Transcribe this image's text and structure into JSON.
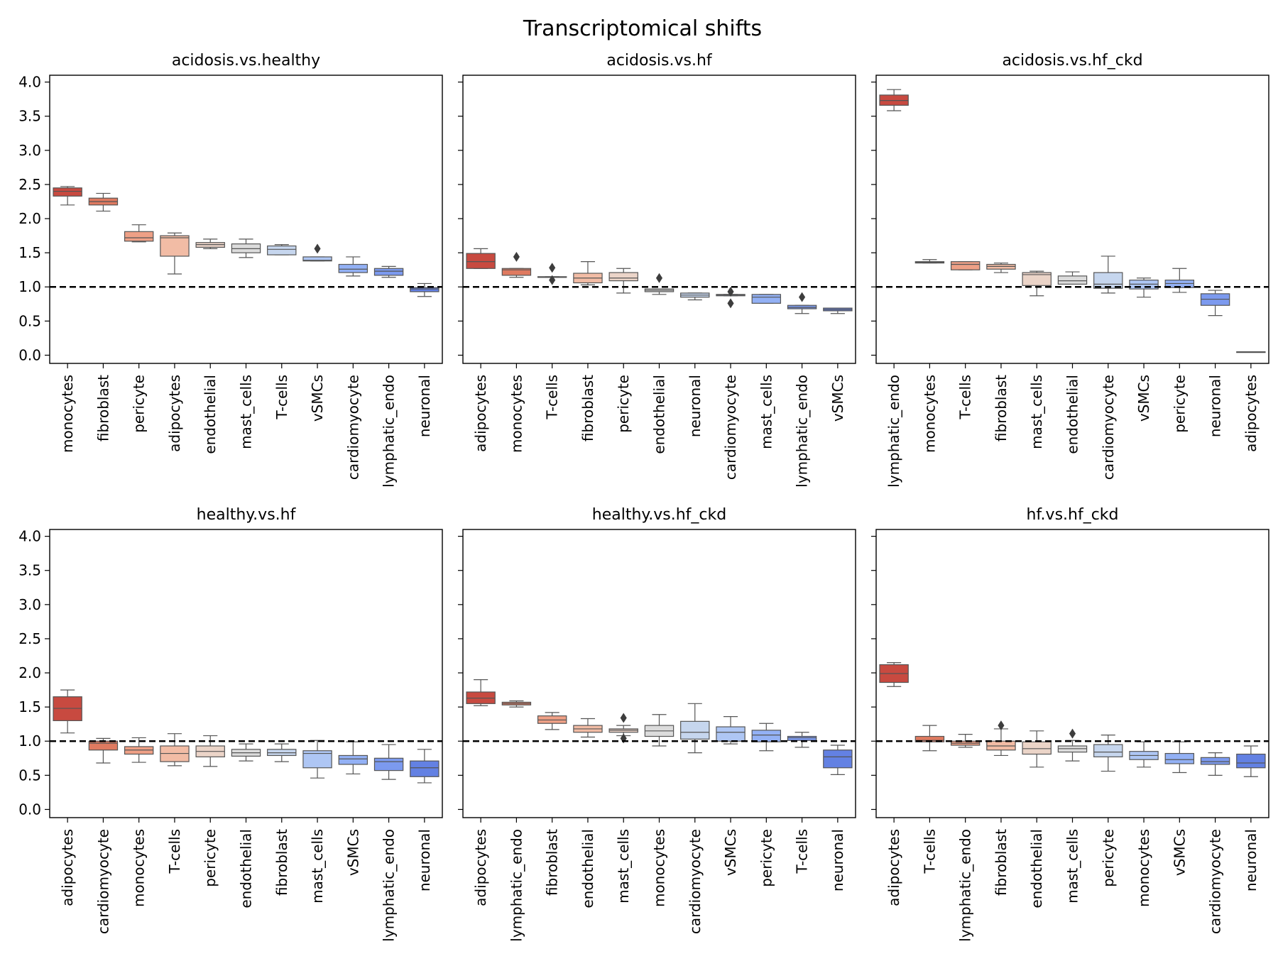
{
  "figure": {
    "title": "Transcriptomical shifts"
  },
  "chart_data": [
    {
      "type": "box",
      "title": "acidosis.vs.healthy",
      "ylim": [
        -0.12,
        4.1
      ],
      "yticks": [
        0.0,
        0.5,
        1.0,
        1.5,
        2.0,
        2.5,
        3.0,
        3.5,
        4.0
      ],
      "reference_line": 1.0,
      "boxes": [
        {
          "label": "monocytes",
          "color": "#c84a40",
          "q1": 2.33,
          "med": 2.4,
          "q3": 2.45,
          "wlo": 2.2,
          "whi": 2.47,
          "fliers": []
        },
        {
          "label": "fibroblast",
          "color": "#df7a60",
          "q1": 2.2,
          "med": 2.25,
          "q3": 2.3,
          "wlo": 2.11,
          "whi": 2.37,
          "fliers": []
        },
        {
          "label": "pericyte",
          "color": "#eea086",
          "q1": 1.67,
          "med": 1.72,
          "q3": 1.81,
          "wlo": 1.66,
          "whi": 1.91,
          "fliers": []
        },
        {
          "label": "adipocytes",
          "color": "#f2bca5",
          "q1": 1.45,
          "med": 1.72,
          "q3": 1.75,
          "wlo": 1.19,
          "whi": 1.79,
          "fliers": []
        },
        {
          "label": "endothelial",
          "color": "#ebd4c8",
          "q1": 1.58,
          "med": 1.62,
          "q3": 1.65,
          "wlo": 1.56,
          "whi": 1.7,
          "fliers": []
        },
        {
          "label": "mast_cells",
          "color": "#dcdcdc",
          "q1": 1.5,
          "med": 1.56,
          "q3": 1.63,
          "wlo": 1.43,
          "whi": 1.7,
          "fliers": []
        },
        {
          "label": "T-cells",
          "color": "#c6d6ee",
          "q1": 1.47,
          "med": 1.55,
          "q3": 1.6,
          "wlo": 1.47,
          "whi": 1.62,
          "fliers": []
        },
        {
          "label": "vSMCs",
          "color": "#aec6f4",
          "q1": 1.38,
          "med": 1.39,
          "q3": 1.44,
          "wlo": 1.38,
          "whi": 1.44,
          "fliers": [
            1.56
          ]
        },
        {
          "label": "cardiomyocyte",
          "color": "#93b1f5",
          "q1": 1.21,
          "med": 1.26,
          "q3": 1.33,
          "wlo": 1.16,
          "whi": 1.44,
          "fliers": []
        },
        {
          "label": "lymphatic_endo",
          "color": "#7c9aef",
          "q1": 1.17,
          "med": 1.23,
          "q3": 1.27,
          "wlo": 1.14,
          "whi": 1.3,
          "fliers": []
        },
        {
          "label": "neuronal",
          "color": "#6381e3",
          "q1": 0.93,
          "med": 0.97,
          "q3": 0.99,
          "wlo": 0.86,
          "whi": 1.05,
          "fliers": []
        }
      ]
    },
    {
      "type": "box",
      "title": "acidosis.vs.hf",
      "ylim": [
        -0.12,
        4.1
      ],
      "yticks": [
        0.0,
        0.5,
        1.0,
        1.5,
        2.0,
        2.5,
        3.0,
        3.5,
        4.0
      ],
      "reference_line": 1.0,
      "boxes": [
        {
          "label": "adipocytes",
          "color": "#c84a40",
          "q1": 1.27,
          "med": 1.37,
          "q3": 1.49,
          "wlo": 1.27,
          "whi": 1.56,
          "fliers": []
        },
        {
          "label": "monocytes",
          "color": "#df7a60",
          "q1": 1.17,
          "med": 1.25,
          "q3": 1.27,
          "wlo": 1.14,
          "whi": 1.27,
          "fliers": [
            1.44
          ]
        },
        {
          "label": "T-cells",
          "color": "#eea086",
          "q1": 1.14,
          "med": 1.14,
          "q3": 1.15,
          "wlo": 1.14,
          "whi": 1.15,
          "fliers": [
            1.28,
            1.1
          ]
        },
        {
          "label": "fibroblast",
          "color": "#f2bca5",
          "q1": 1.06,
          "med": 1.13,
          "q3": 1.2,
          "wlo": 1.03,
          "whi": 1.37,
          "fliers": []
        },
        {
          "label": "pericyte",
          "color": "#ebd4c8",
          "q1": 1.09,
          "med": 1.13,
          "q3": 1.21,
          "wlo": 0.91,
          "whi": 1.27,
          "fliers": []
        },
        {
          "label": "endothelial",
          "color": "#dcdcdc",
          "q1": 0.93,
          "med": 0.95,
          "q3": 0.97,
          "wlo": 0.89,
          "whi": 0.97,
          "fliers": [
            1.13
          ]
        },
        {
          "label": "neuronal",
          "color": "#c6d6ee",
          "q1": 0.85,
          "med": 0.88,
          "q3": 0.91,
          "wlo": 0.81,
          "whi": 0.91,
          "fliers": []
        },
        {
          "label": "cardiomyocyte",
          "color": "#aec6f4",
          "q1": 0.87,
          "med": 0.88,
          "q3": 0.89,
          "wlo": 0.87,
          "whi": 0.89,
          "fliers": [
            0.93,
            0.76
          ]
        },
        {
          "label": "mast_cells",
          "color": "#93b1f5",
          "q1": 0.76,
          "med": 0.85,
          "q3": 0.89,
          "wlo": 0.76,
          "whi": 0.89,
          "fliers": []
        },
        {
          "label": "lymphatic_endo",
          "color": "#7c9aef",
          "q1": 0.68,
          "med": 0.7,
          "q3": 0.73,
          "wlo": 0.61,
          "whi": 0.73,
          "fliers": [
            0.85
          ]
        },
        {
          "label": "vSMCs",
          "color": "#6381e3",
          "q1": 0.65,
          "med": 0.67,
          "q3": 0.69,
          "wlo": 0.61,
          "whi": 0.69,
          "fliers": []
        }
      ]
    },
    {
      "type": "box",
      "title": "acidosis.vs.hf_ckd",
      "ylim": [
        -0.12,
        4.1
      ],
      "yticks": [
        0.0,
        0.5,
        1.0,
        1.5,
        2.0,
        2.5,
        3.0,
        3.5,
        4.0
      ],
      "reference_line": 1.0,
      "boxes": [
        {
          "label": "lymphatic_endo",
          "color": "#c84a40",
          "q1": 3.66,
          "med": 3.73,
          "q3": 3.81,
          "wlo": 3.58,
          "whi": 3.89,
          "fliers": []
        },
        {
          "label": "monocytes",
          "color": "#df7a60",
          "q1": 1.35,
          "med": 1.36,
          "q3": 1.37,
          "wlo": 1.35,
          "whi": 1.4,
          "fliers": []
        },
        {
          "label": "T-cells",
          "color": "#eea086",
          "q1": 1.25,
          "med": 1.33,
          "q3": 1.37,
          "wlo": 1.25,
          "whi": 1.37,
          "fliers": []
        },
        {
          "label": "fibroblast",
          "color": "#f2bca5",
          "q1": 1.26,
          "med": 1.3,
          "q3": 1.33,
          "wlo": 1.21,
          "whi": 1.35,
          "fliers": []
        },
        {
          "label": "mast_cells",
          "color": "#ebd4c8",
          "q1": 1.02,
          "med": 1.18,
          "q3": 1.21,
          "wlo": 0.87,
          "whi": 1.23,
          "fliers": []
        },
        {
          "label": "endothelial",
          "color": "#dcdcdc",
          "q1": 1.04,
          "med": 1.09,
          "q3": 1.16,
          "wlo": 1.04,
          "whi": 1.22,
          "fliers": []
        },
        {
          "label": "cardiomyocyte",
          "color": "#c6d6ee",
          "q1": 0.98,
          "med": 1.04,
          "q3": 1.21,
          "wlo": 0.91,
          "whi": 1.45,
          "fliers": []
        },
        {
          "label": "vSMCs",
          "color": "#aec6f4",
          "q1": 0.97,
          "med": 1.04,
          "q3": 1.1,
          "wlo": 0.85,
          "whi": 1.13,
          "fliers": []
        },
        {
          "label": "pericyte",
          "color": "#93b1f5",
          "q1": 0.99,
          "med": 1.05,
          "q3": 1.1,
          "wlo": 0.92,
          "whi": 1.27,
          "fliers": []
        },
        {
          "label": "neuronal",
          "color": "#7c9aef",
          "q1": 0.73,
          "med": 0.82,
          "q3": 0.9,
          "wlo": 0.58,
          "whi": 0.95,
          "fliers": []
        },
        {
          "label": "adipocytes",
          "color": "#6381e3",
          "q1": 0.05,
          "med": 0.05,
          "q3": 0.05,
          "wlo": 0.05,
          "whi": 0.05,
          "fliers": []
        }
      ]
    },
    {
      "type": "box",
      "title": "healthy.vs.hf",
      "ylim": [
        -0.12,
        4.1
      ],
      "yticks": [
        0.0,
        0.5,
        1.0,
        1.5,
        2.0,
        2.5,
        3.0,
        3.5,
        4.0
      ],
      "reference_line": 1.0,
      "boxes": [
        {
          "label": "adipocytes",
          "color": "#c84a40",
          "q1": 1.3,
          "med": 1.48,
          "q3": 1.65,
          "wlo": 1.12,
          "whi": 1.75,
          "fliers": []
        },
        {
          "label": "cardiomyocyte",
          "color": "#df7a60",
          "q1": 0.87,
          "med": 0.97,
          "q3": 1.0,
          "wlo": 0.68,
          "whi": 1.04,
          "fliers": []
        },
        {
          "label": "monocytes",
          "color": "#eea086",
          "q1": 0.81,
          "med": 0.87,
          "q3": 0.92,
          "wlo": 0.69,
          "whi": 1.05,
          "fliers": []
        },
        {
          "label": "T-cells",
          "color": "#f2bca5",
          "q1": 0.7,
          "med": 0.82,
          "q3": 0.93,
          "wlo": 0.64,
          "whi": 1.11,
          "fliers": []
        },
        {
          "label": "pericyte",
          "color": "#ebd4c8",
          "q1": 0.77,
          "med": 0.85,
          "q3": 0.93,
          "wlo": 0.63,
          "whi": 1.08,
          "fliers": []
        },
        {
          "label": "endothelial",
          "color": "#dcdcdc",
          "q1": 0.78,
          "med": 0.83,
          "q3": 0.88,
          "wlo": 0.71,
          "whi": 0.96,
          "fliers": []
        },
        {
          "label": "fibroblast",
          "color": "#c6d6ee",
          "q1": 0.79,
          "med": 0.83,
          "q3": 0.88,
          "wlo": 0.7,
          "whi": 0.96,
          "fliers": []
        },
        {
          "label": "mast_cells",
          "color": "#aec6f4",
          "q1": 0.61,
          "med": 0.82,
          "q3": 0.86,
          "wlo": 0.46,
          "whi": 1.01,
          "fliers": []
        },
        {
          "label": "vSMCs",
          "color": "#93b1f5",
          "q1": 0.66,
          "med": 0.74,
          "q3": 0.79,
          "wlo": 0.52,
          "whi": 0.99,
          "fliers": []
        },
        {
          "label": "lymphatic_endo",
          "color": "#7c9aef",
          "q1": 0.57,
          "med": 0.7,
          "q3": 0.75,
          "wlo": 0.44,
          "whi": 0.95,
          "fliers": []
        },
        {
          "label": "neuronal",
          "color": "#6381e3",
          "q1": 0.48,
          "med": 0.61,
          "q3": 0.71,
          "wlo": 0.39,
          "whi": 0.88,
          "fliers": []
        }
      ]
    },
    {
      "type": "box",
      "title": "healthy.vs.hf_ckd",
      "ylim": [
        -0.12,
        4.1
      ],
      "yticks": [
        0.0,
        0.5,
        1.0,
        1.5,
        2.0,
        2.5,
        3.0,
        3.5,
        4.0
      ],
      "reference_line": 1.0,
      "boxes": [
        {
          "label": "adipocytes",
          "color": "#c84a40",
          "q1": 1.55,
          "med": 1.63,
          "q3": 1.72,
          "wlo": 1.52,
          "whi": 1.9,
          "fliers": []
        },
        {
          "label": "lymphatic_endo",
          "color": "#df7a60",
          "q1": 1.53,
          "med": 1.55,
          "q3": 1.57,
          "wlo": 1.5,
          "whi": 1.59,
          "fliers": []
        },
        {
          "label": "fibroblast",
          "color": "#eea086",
          "q1": 1.26,
          "med": 1.31,
          "q3": 1.37,
          "wlo": 1.17,
          "whi": 1.42,
          "fliers": []
        },
        {
          "label": "endothelial",
          "color": "#f2bca5",
          "q1": 1.13,
          "med": 1.18,
          "q3": 1.23,
          "wlo": 1.06,
          "whi": 1.33,
          "fliers": []
        },
        {
          "label": "mast_cells",
          "color": "#ebd4c8",
          "q1": 1.13,
          "med": 1.16,
          "q3": 1.18,
          "wlo": 1.08,
          "whi": 1.23,
          "fliers": [
            1.34,
            1.04
          ]
        },
        {
          "label": "monocytes",
          "color": "#dcdcdc",
          "q1": 1.07,
          "med": 1.15,
          "q3": 1.23,
          "wlo": 0.93,
          "whi": 1.39,
          "fliers": []
        },
        {
          "label": "cardiomyocyte",
          "color": "#c6d6ee",
          "q1": 1.03,
          "med": 1.13,
          "q3": 1.29,
          "wlo": 0.83,
          "whi": 1.55,
          "fliers": []
        },
        {
          "label": "vSMCs",
          "color": "#aec6f4",
          "q1": 1.0,
          "med": 1.13,
          "q3": 1.21,
          "wlo": 0.96,
          "whi": 1.36,
          "fliers": []
        },
        {
          "label": "pericyte",
          "color": "#93b1f5",
          "q1": 0.99,
          "med": 1.09,
          "q3": 1.16,
          "wlo": 0.86,
          "whi": 1.26,
          "fliers": []
        },
        {
          "label": "T-cells",
          "color": "#7c9aef",
          "q1": 1.01,
          "med": 1.05,
          "q3": 1.07,
          "wlo": 0.91,
          "whi": 1.13,
          "fliers": []
        },
        {
          "label": "neuronal",
          "color": "#6381e3",
          "q1": 0.61,
          "med": 0.77,
          "q3": 0.87,
          "wlo": 0.51,
          "whi": 0.94,
          "fliers": []
        }
      ]
    },
    {
      "type": "box",
      "title": "hf.vs.hf_ckd",
      "ylim": [
        -0.12,
        4.1
      ],
      "yticks": [
        0.0,
        0.5,
        1.0,
        1.5,
        2.0,
        2.5,
        3.0,
        3.5,
        4.0
      ],
      "reference_line": 1.0,
      "boxes": [
        {
          "label": "adipocytes",
          "color": "#c84a40",
          "q1": 1.86,
          "med": 1.99,
          "q3": 2.12,
          "wlo": 1.8,
          "whi": 2.15,
          "fliers": []
        },
        {
          "label": "T-cells",
          "color": "#df7a60",
          "q1": 0.99,
          "med": 1.01,
          "q3": 1.07,
          "wlo": 0.86,
          "whi": 1.23,
          "fliers": []
        },
        {
          "label": "lymphatic_endo",
          "color": "#eea086",
          "q1": 0.94,
          "med": 0.97,
          "q3": 1.0,
          "wlo": 0.91,
          "whi": 1.1,
          "fliers": []
        },
        {
          "label": "fibroblast",
          "color": "#f2bca5",
          "q1": 0.87,
          "med": 0.93,
          "q3": 1.0,
          "wlo": 0.79,
          "whi": 1.18,
          "fliers": [
            1.23
          ]
        },
        {
          "label": "endothelial",
          "color": "#ebd4c8",
          "q1": 0.81,
          "med": 0.89,
          "q3": 0.99,
          "wlo": 0.62,
          "whi": 1.15,
          "fliers": []
        },
        {
          "label": "mast_cells",
          "color": "#dcdcdc",
          "q1": 0.84,
          "med": 0.89,
          "q3": 0.93,
          "wlo": 0.71,
          "whi": 1.01,
          "fliers": [
            1.11
          ]
        },
        {
          "label": "pericyte",
          "color": "#c6d6ee",
          "q1": 0.77,
          "med": 0.84,
          "q3": 0.95,
          "wlo": 0.56,
          "whi": 1.09,
          "fliers": []
        },
        {
          "label": "monocytes",
          "color": "#aec6f4",
          "q1": 0.73,
          "med": 0.79,
          "q3": 0.85,
          "wlo": 0.62,
          "whi": 0.99,
          "fliers": []
        },
        {
          "label": "vSMCs",
          "color": "#93b1f5",
          "q1": 0.67,
          "med": 0.73,
          "q3": 0.82,
          "wlo": 0.54,
          "whi": 0.99,
          "fliers": []
        },
        {
          "label": "cardiomyocyte",
          "color": "#7c9aef",
          "q1": 0.66,
          "med": 0.7,
          "q3": 0.76,
          "wlo": 0.5,
          "whi": 0.83,
          "fliers": []
        },
        {
          "label": "neuronal",
          "color": "#6381e3",
          "q1": 0.61,
          "med": 0.68,
          "q3": 0.81,
          "wlo": 0.48,
          "whi": 0.93,
          "fliers": []
        }
      ]
    }
  ]
}
